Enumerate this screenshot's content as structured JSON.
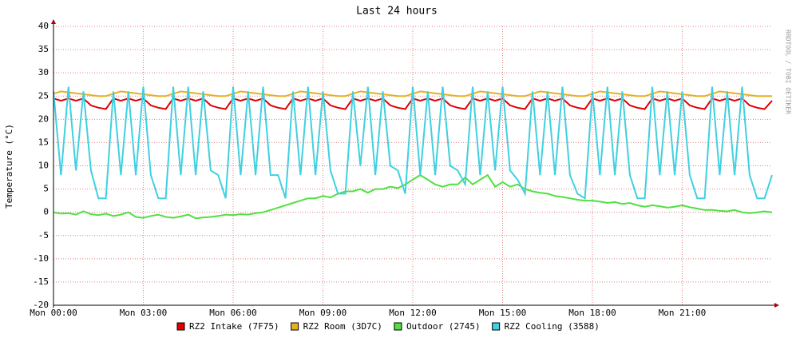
{
  "chart_data": {
    "type": "line",
    "title": "Last 24 hours",
    "y_label": "Temperature (°C)",
    "side_label": "RRDTOOL / TOBI OETIKER",
    "xlim": [
      0,
      24
    ],
    "xticks": [
      {
        "value": 0,
        "label": "Mon 00:00"
      },
      {
        "value": 3,
        "label": "Mon 03:00"
      },
      {
        "value": 6,
        "label": "Mon 06:00"
      },
      {
        "value": 9,
        "label": "Mon 09:00"
      },
      {
        "value": 12,
        "label": "Mon 12:00"
      },
      {
        "value": 15,
        "label": "Mon 15:00"
      },
      {
        "value": 18,
        "label": "Mon 18:00"
      },
      {
        "value": 21,
        "label": "Mon 21:00"
      }
    ],
    "ylim": [
      -20,
      40
    ],
    "yticks": [
      -20,
      -15,
      -10,
      -5,
      0,
      5,
      10,
      15,
      20,
      25,
      30,
      35,
      40
    ],
    "grid": true,
    "x": [
      0,
      0.25,
      0.5,
      0.75,
      1,
      1.25,
      1.5,
      1.75,
      2,
      2.25,
      2.5,
      2.75,
      3,
      3.25,
      3.5,
      3.75,
      4,
      4.25,
      4.5,
      4.75,
      5,
      5.25,
      5.5,
      5.75,
      6,
      6.25,
      6.5,
      6.75,
      7,
      7.25,
      7.5,
      7.75,
      8,
      8.25,
      8.5,
      8.75,
      9,
      9.25,
      9.5,
      9.75,
      10,
      10.25,
      10.5,
      10.75,
      11,
      11.25,
      11.5,
      11.75,
      12,
      12.25,
      12.5,
      12.75,
      13,
      13.25,
      13.5,
      13.75,
      14,
      14.25,
      14.5,
      14.75,
      15,
      15.25,
      15.5,
      15.75,
      16,
      16.25,
      16.5,
      16.75,
      17,
      17.25,
      17.5,
      17.75,
      18,
      18.25,
      18.5,
      18.75,
      19,
      19.25,
      19.5,
      19.75,
      20,
      20.25,
      20.5,
      20.75,
      21,
      21.25,
      21.5,
      21.75,
      22,
      22.25,
      22.5,
      22.75,
      23,
      23.25,
      23.5,
      23.75,
      24
    ],
    "series": [
      {
        "name": "RZ2 Intake (7F75)",
        "color": "#e00000",
        "values": [
          24.5,
          24,
          24.5,
          24,
          24.5,
          23,
          22.5,
          22.2,
          24.5,
          24,
          24.5,
          24,
          24.5,
          23,
          22.5,
          22.2,
          24.5,
          24,
          24.5,
          24,
          24.5,
          23,
          22.5,
          22.2,
          24.5,
          24,
          24.5,
          24,
          24.5,
          23,
          22.5,
          22.2,
          24.5,
          24,
          24.5,
          24,
          24.5,
          23,
          22.5,
          22.2,
          24.5,
          24,
          24.5,
          24,
          24.5,
          23,
          22.5,
          22.2,
          24.5,
          24,
          24.5,
          24,
          24.5,
          23,
          22.5,
          22.2,
          24.5,
          24,
          24.5,
          24,
          24.5,
          23,
          22.5,
          22.2,
          24.5,
          24,
          24.5,
          24,
          24.5,
          23,
          22.5,
          22.2,
          24.5,
          24,
          24.5,
          24,
          24.5,
          23,
          22.5,
          22.2,
          24.5,
          24,
          24.5,
          24,
          24.5,
          23,
          22.5,
          22.2,
          24.5,
          24,
          24.5,
          24,
          24.5,
          23,
          22.5,
          22.2,
          24
        ]
      },
      {
        "name": "RZ2 Room (3D7C)",
        "color": "#e8b020",
        "values": [
          25.5,
          26,
          25.8,
          25.6,
          25.4,
          25.2,
          25,
          25,
          25.5,
          26,
          25.8,
          25.6,
          25.4,
          25.2,
          25,
          25,
          25.5,
          26,
          25.8,
          25.6,
          25.4,
          25.2,
          25,
          25,
          25.5,
          26,
          25.8,
          25.6,
          25.4,
          25.2,
          25,
          25,
          25.5,
          26,
          25.8,
          25.6,
          25.4,
          25.2,
          25,
          25,
          25.5,
          26,
          25.8,
          25.6,
          25.4,
          25.2,
          25,
          25,
          25.5,
          26,
          25.8,
          25.6,
          25.4,
          25.2,
          25,
          25,
          25.5,
          26,
          25.8,
          25.6,
          25.4,
          25.2,
          25,
          25,
          25.5,
          26,
          25.8,
          25.6,
          25.4,
          25.2,
          25,
          25,
          25.5,
          26,
          25.8,
          25.6,
          25.4,
          25.2,
          25,
          25,
          25.5,
          26,
          25.8,
          25.6,
          25.4,
          25.2,
          25,
          25,
          25.5,
          26,
          25.8,
          25.6,
          25.4,
          25.2,
          25,
          25,
          25
        ]
      },
      {
        "name": "Outdoor (2745)",
        "color": "#50e040",
        "values": [
          0,
          -0.3,
          -0.2,
          -0.5,
          0.2,
          -0.4,
          -0.6,
          -0.3,
          -0.8,
          -0.5,
          0,
          -1,
          -1.2,
          -0.8,
          -0.5,
          -1,
          -1.2,
          -0.9,
          -0.5,
          -1.3,
          -1.1,
          -1,
          -0.8,
          -0.5,
          -0.6,
          -0.4,
          -0.5,
          -0.2,
          0,
          0.5,
          1,
          1.5,
          2,
          2.5,
          3,
          3,
          3.5,
          3.2,
          4,
          4.5,
          4.5,
          5,
          4.2,
          5,
          5,
          5.5,
          5.2,
          6,
          7,
          8,
          7,
          6,
          5.5,
          6,
          6,
          7.5,
          6,
          7,
          8,
          5.5,
          6.5,
          5.5,
          6,
          5,
          4.5,
          4.2,
          4,
          3.5,
          3.3,
          3,
          2.7,
          2.5,
          2.5,
          2.3,
          2,
          2.2,
          1.8,
          2,
          1.5,
          1.2,
          1.5,
          1.3,
          1,
          1.2,
          1.5,
          1.1,
          0.8,
          0.5,
          0.5,
          0.3,
          0.2,
          0.5,
          0,
          -0.2,
          0,
          0.2,
          0
        ]
      },
      {
        "name": "RZ2 Cooling (3588)",
        "color": "#40d0e0",
        "values": [
          26,
          8,
          27,
          9,
          26,
          9,
          3,
          3,
          26,
          8,
          26,
          8,
          27,
          8,
          3,
          3,
          27,
          8,
          27,
          8,
          26,
          9,
          8,
          3,
          27,
          8,
          26,
          8,
          27,
          8,
          8,
          3,
          26,
          8,
          27,
          8,
          26,
          9,
          4,
          4,
          26,
          10,
          27,
          8,
          26,
          10,
          9,
          4,
          27,
          8,
          26,
          8,
          27,
          10,
          9,
          6,
          27,
          8,
          26,
          9,
          27,
          9,
          7,
          4,
          26,
          8,
          26,
          8,
          27,
          8,
          4,
          3,
          26,
          8,
          27,
          8,
          26,
          8,
          3,
          3,
          27,
          8,
          26,
          8,
          26,
          8,
          3,
          3,
          27,
          8,
          26,
          8,
          27,
          8,
          3,
          3,
          8
        ]
      }
    ]
  }
}
